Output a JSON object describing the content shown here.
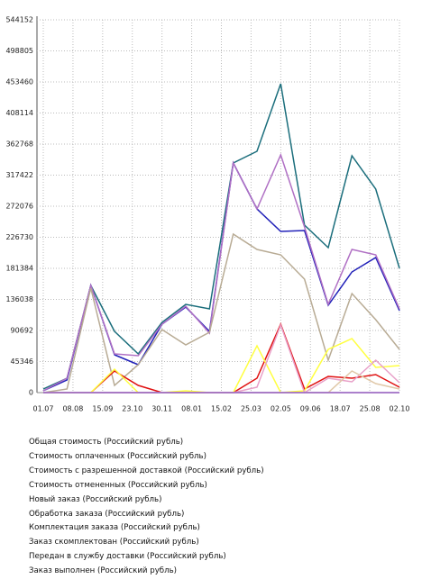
{
  "chart_data": {
    "type": "line",
    "x_labels": [
      "01.07",
      "08.08",
      "15.09",
      "23.10",
      "30.11",
      "08.01",
      "15.02",
      "25.03",
      "02.05",
      "09.06",
      "18.07",
      "25.08",
      "02.10"
    ],
    "ylim": [
      0,
      544152
    ],
    "yticks": [
      0,
      45346,
      90692,
      136038,
      181384,
      226730,
      272076,
      317422,
      362768,
      408114,
      453460,
      498805,
      544152
    ],
    "grid": true,
    "series": [
      {
        "name": "Общая стоимость (Российский рубль)",
        "color": "#1b6e7c",
        "values": [
          5257,
          21030,
          156414,
          89376,
          56519,
          102524,
          128810,
          122239,
          335160,
          352247,
          450827,
          244474,
          211618,
          345675,
          297044,
          181384
        ]
      },
      {
        "name": "Стоимость оплаченных (Российский рубль)",
        "color": "#2020b8",
        "values": [
          2629,
          18401,
          156414,
          55205,
          40745,
          99896,
          124867,
          89376,
          335160,
          268133,
          235277,
          236591,
          127496,
          176127,
          197155,
          119610
        ]
      },
      {
        "name": "Стоимость с разрешенной доставкой (Российский рубль)",
        "color": "#b070c4",
        "values": [
          2629,
          21030,
          156414,
          56519,
          53890,
          99896,
          126181,
          86747,
          335160,
          268133,
          346987,
          241846,
          128810,
          208990,
          201104,
          122239
        ]
      },
      {
        "name": "Стоимость отмененных (Российский рубль)",
        "color": "#b8ab94",
        "values": [
          0,
          5257,
          152471,
          10514,
          40745,
          92000,
          69658,
          88062,
          231316,
          208990,
          201104,
          165618,
          47312,
          144567,
          106455,
          63085
        ]
      },
      {
        "name": "Новый заказ (Российский рубль)",
        "color": "#e01010",
        "values": [
          0,
          0,
          0,
          31543,
          10514,
          0,
          0,
          0,
          0,
          21030,
          99896,
          5257,
          23658,
          21030,
          26287,
          7886
        ]
      },
      {
        "name": "Обработка заказа (Российский рубль)",
        "color": "#ffff40",
        "values": [
          0,
          0,
          0,
          34172,
          0,
          0,
          2629,
          0,
          0,
          68344,
          0,
          2629,
          63085,
          78857,
          36800,
          39431
        ]
      },
      {
        "name": "Комплектация заказа (Российский рубль)",
        "color": "#e8a0c8",
        "values": [
          0,
          0,
          0,
          0,
          0,
          0,
          0,
          0,
          0,
          7886,
          98582,
          0,
          21030,
          15771,
          47312,
          14457
        ]
      },
      {
        "name": "Заказ скомплектован (Российский рубль)",
        "color": "#e0c8a8",
        "values": [
          0,
          0,
          0,
          0,
          0,
          0,
          0,
          0,
          0,
          0,
          0,
          0,
          0,
          31543,
          13143,
          5257
        ]
      },
      {
        "name": "Передан в службу доставки (Российский рубль)",
        "color": "#c0c0e0",
        "values": [
          0,
          0,
          0,
          0,
          0,
          0,
          0,
          0,
          0,
          0,
          0,
          0,
          0,
          0,
          0,
          0
        ]
      },
      {
        "name": "Заказ выполнен (Российский рубль)",
        "color": "#9a60c0",
        "values": [
          0,
          0,
          0,
          0,
          0,
          0,
          0,
          0,
          0,
          0,
          0,
          0,
          0,
          0,
          0,
          0
        ]
      }
    ]
  }
}
